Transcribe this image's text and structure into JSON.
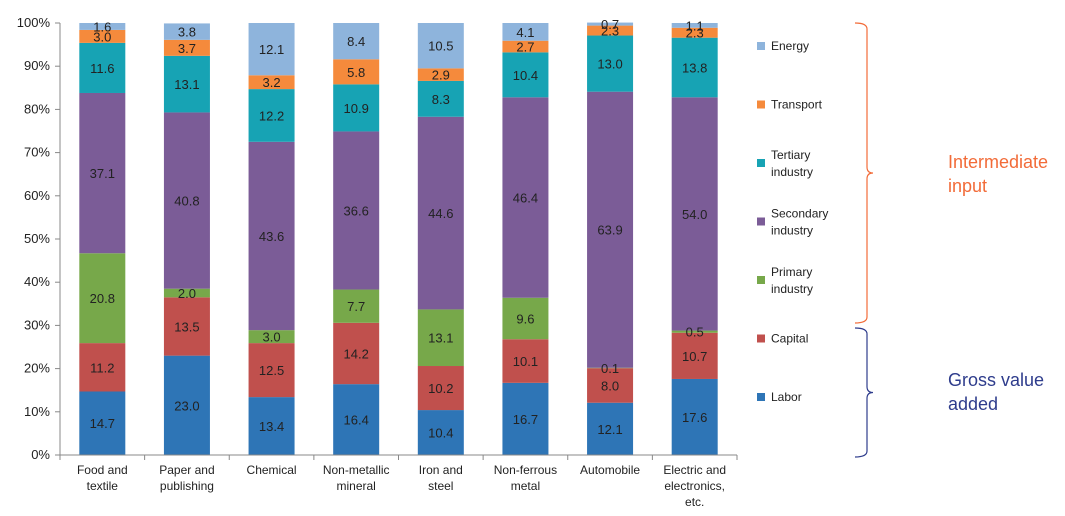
{
  "chart_data": {
    "type": "bar",
    "stacked": true,
    "percent": true,
    "categories": [
      [
        "Food and",
        "textile"
      ],
      [
        "Paper and",
        "publishing"
      ],
      [
        "Chemical"
      ],
      [
        "Non-metallic",
        "mineral"
      ],
      [
        "Iron and",
        "steel"
      ],
      [
        "Non-ferrous",
        "metal"
      ],
      [
        "Automobile"
      ],
      [
        "Electric and",
        "electronics,",
        "etc."
      ]
    ],
    "series": [
      {
        "name": "Labor",
        "color": "#2E75B6",
        "values": [
          14.7,
          23.0,
          13.4,
          16.4,
          10.4,
          16.7,
          12.1,
          17.6
        ]
      },
      {
        "name": "Capital",
        "color": "#C0504D",
        "values": [
          11.2,
          13.5,
          12.5,
          14.2,
          10.2,
          10.1,
          8.0,
          10.7
        ]
      },
      {
        "name": "Primary industry",
        "color": "#77A84A",
        "values": [
          20.8,
          2.0,
          3.0,
          7.7,
          13.1,
          9.6,
          0.1,
          0.5
        ]
      },
      {
        "name": "Secondary industry",
        "color": "#7B5C97",
        "values": [
          37.1,
          40.8,
          43.6,
          36.6,
          44.6,
          46.4,
          63.9,
          54.0
        ]
      },
      {
        "name": "Tertiary industry",
        "color": "#17A3B4",
        "values": [
          11.6,
          13.1,
          12.2,
          10.9,
          8.3,
          10.4,
          13.0,
          13.8
        ]
      },
      {
        "name": "Transport",
        "color": "#F58A3C",
        "values": [
          3.0,
          3.7,
          3.2,
          5.8,
          2.9,
          2.7,
          2.3,
          2.3
        ]
      },
      {
        "name": "Energy",
        "color": "#8EB4DC",
        "values": [
          1.6,
          3.8,
          12.1,
          8.4,
          10.5,
          4.1,
          0.7,
          1.1
        ]
      }
    ],
    "legend_labels": [
      [
        "Energy"
      ],
      [
        "Transport"
      ],
      [
        "Tertiary",
        "industry"
      ],
      [
        "Secondary",
        "industry"
      ],
      [
        "Primary",
        "industry"
      ],
      [
        "Capital"
      ],
      [
        "Labor"
      ]
    ],
    "yticks": [
      "0%",
      "10%",
      "20%",
      "30%",
      "40%",
      "50%",
      "60%",
      "70%",
      "80%",
      "90%",
      "100%"
    ],
    "ylim": [
      0,
      100
    ],
    "legend_position": "right",
    "annotations": {
      "intermediate": {
        "lines": [
          "Intermediate",
          "input"
        ],
        "color": "#F26B38"
      },
      "gross": {
        "lines": [
          "Gross value",
          "added"
        ],
        "color": "#2E3C8C"
      }
    }
  }
}
